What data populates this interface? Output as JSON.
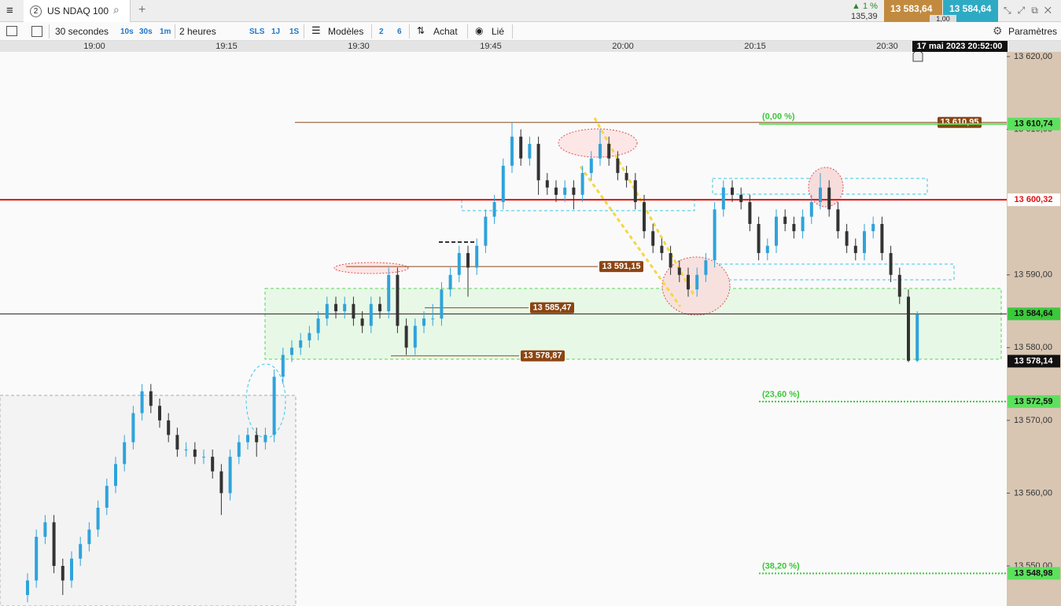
{
  "header": {
    "tab_number": "2",
    "tab_title": "US NDAQ 100",
    "change": "▲ 1 %",
    "change_points": "135,39",
    "bid": "13 583,64",
    "spread": "1,00",
    "ask": "13 584,64"
  },
  "toolbar": {
    "period": "30 secondes",
    "periods": [
      "10s",
      "30s",
      "1m"
    ],
    "range": "2 heures",
    "ranges": [
      "SLS",
      "1J",
      "1S"
    ],
    "templates": "Modèles",
    "counts": [
      "2",
      "6"
    ],
    "order": "Achat",
    "link": "Lié",
    "settings": "Paramètres"
  },
  "time_axis": {
    "labels": [
      "19:00",
      "19:15",
      "19:30",
      "19:45",
      "20:00",
      "20:15",
      "20:30"
    ],
    "cursor": "17 mai 2023 20:52:00"
  },
  "price_axis": {
    "ticks": [
      {
        "value": 13620,
        "label": "13 620,00"
      },
      {
        "value": 13610,
        "label": "13 610,00"
      },
      {
        "value": 13590,
        "label": "13 590,00"
      },
      {
        "value": 13580,
        "label": "13 580,00"
      },
      {
        "value": 13570,
        "label": "13 570,00"
      },
      {
        "value": 13560,
        "label": "13 560,00"
      },
      {
        "value": 13550,
        "label": "13 550,00"
      }
    ]
  },
  "axis_tags": [
    {
      "value": 13610.74,
      "label": "13 610,74"
    },
    {
      "value": 13600.32,
      "label": "13 600,32"
    },
    {
      "value": 13584.64,
      "label": "13 584,64"
    },
    {
      "value": 13578.14,
      "label": "13 578,14"
    },
    {
      "value": 13572.59,
      "label": "13 572,59"
    },
    {
      "value": 13548.98,
      "label": "13 548,98"
    }
  ],
  "drawn_levels": [
    {
      "value": 13610.95,
      "label": "13 610,95"
    },
    {
      "value": 13591.15,
      "label": "13 591,15"
    },
    {
      "value": 13585.47,
      "label": "13 585,47"
    },
    {
      "value": 13578.87,
      "label": "13 578,87"
    }
  ],
  "fibonacci": [
    {
      "label": "(0,00 %)",
      "value": 13610.74
    },
    {
      "label": "(23,60 %)",
      "value": 13572.59
    },
    {
      "label": "(38,20 %)",
      "value": 13548.98
    }
  ],
  "candles": [
    [
      13546,
      13549,
      13545,
      13548
    ],
    [
      13548,
      13555,
      13547,
      13554
    ],
    [
      13554,
      13557,
      13553,
      13556
    ],
    [
      13556,
      13557,
      13549,
      13550
    ],
    [
      13550,
      13551,
      13546,
      13548
    ],
    [
      13548,
      13552,
      13547,
      13551
    ],
    [
      13551,
      13554,
      13550,
      13553
    ],
    [
      13553,
      13556,
      13552,
      13555
    ],
    [
      13555,
      13559,
      13554,
      13558
    ],
    [
      13558,
      13562,
      13557,
      13561
    ],
    [
      13561,
      13565,
      13560,
      13564
    ],
    [
      13564,
      13568,
      13563,
      13567
    ],
    [
      13567,
      13572,
      13566,
      13571
    ],
    [
      13571,
      13575,
      13570,
      13574
    ],
    [
      13574,
      13575,
      13571,
      13572
    ],
    [
      13572,
      13573,
      13569,
      13570
    ],
    [
      13570,
      13571,
      13567,
      13568
    ],
    [
      13568,
      13569,
      13565,
      13566
    ],
    [
      13566,
      13567,
      13565,
      13566
    ],
    [
      13566,
      13567,
      13564,
      13565
    ],
    [
      13565,
      13566,
      13564,
      13565
    ],
    [
      13565,
      13566,
      13562,
      13563
    ],
    [
      13563,
      13564,
      13557,
      13560
    ],
    [
      13560,
      13566,
      13559,
      13565
    ],
    [
      13565,
      13568,
      13564,
      13567
    ],
    [
      13567,
      13569,
      13566,
      13568
    ],
    [
      13568,
      13569,
      13565,
      13567
    ],
    [
      13567,
      13569,
      13566,
      13568
    ],
    [
      13568,
      13577,
      13567,
      13576
    ],
    [
      13576,
      13580,
      13575,
      13579
    ],
    [
      13579,
      13581,
      13578,
      13580
    ],
    [
      13580,
      13582,
      13579,
      13581
    ],
    [
      13581,
      13583,
      13580,
      13582
    ],
    [
      13582,
      13585,
      13581,
      13584
    ],
    [
      13584,
      13587,
      13583,
      13586
    ],
    [
      13586,
      13587,
      13584,
      13585
    ],
    [
      13585,
      13587,
      13584,
      13586
    ],
    [
      13586,
      13587,
      13583,
      13584
    ],
    [
      13584,
      13585,
      13582,
      13583
    ],
    [
      13583,
      13587,
      13582,
      13586
    ],
    [
      13586,
      13587,
      13584,
      13585
    ],
    [
      13585,
      13591,
      13584,
      13590
    ],
    [
      13590,
      13591,
      13582,
      13583
    ],
    [
      13583,
      13584,
      13579,
      13580
    ],
    [
      13580,
      13584,
      13579,
      13583
    ],
    [
      13583,
      13585,
      13582,
      13584
    ],
    [
      13584,
      13586,
      13583,
      13584
    ],
    [
      13584,
      13589,
      13583,
      13588
    ],
    [
      13588,
      13591,
      13587,
      13590
    ],
    [
      13590,
      13594,
      13589,
      13593
    ],
    [
      13593,
      13594,
      13587,
      13591
    ],
    [
      13591,
      13595,
      13590,
      13594
    ],
    [
      13594,
      13599,
      13593,
      13598
    ],
    [
      13598,
      13601,
      13597,
      13600
    ],
    [
      13600,
      13606,
      13599,
      13605
    ],
    [
      13605,
      13611,
      13604,
      13609
    ],
    [
      13609,
      13610,
      13605,
      13606
    ],
    [
      13606,
      13609,
      13605,
      13608
    ],
    [
      13608,
      13609,
      13601,
      13603
    ],
    [
      13603,
      13604,
      13601,
      13602
    ],
    [
      13602,
      13603,
      13600,
      13601
    ],
    [
      13601,
      13603,
      13600,
      13602
    ],
    [
      13602,
      13603,
      13599,
      13601
    ],
    [
      13601,
      13605,
      13600,
      13604
    ],
    [
      13604,
      13607,
      13603,
      13606
    ],
    [
      13606,
      13610,
      13605,
      13608
    ],
    [
      13608,
      13609,
      13605,
      13606
    ],
    [
      13606,
      13607,
      13603,
      13604
    ],
    [
      13604,
      13605,
      13602,
      13603
    ],
    [
      13603,
      13604,
      13599,
      13600
    ],
    [
      13600,
      13601,
      13595,
      13596
    ],
    [
      13596,
      13597,
      13593,
      13594
    ],
    [
      13594,
      13595,
      13592,
      13593
    ],
    [
      13593,
      13594,
      13590,
      13591
    ],
    [
      13591,
      13592,
      13589,
      13590
    ],
    [
      13590,
      13591,
      13587,
      13588
    ],
    [
      13588,
      13591,
      13587,
      13590
    ],
    [
      13590,
      13593,
      13589,
      13592
    ],
    [
      13592,
      13600,
      13591,
      13599
    ],
    [
      13599,
      13603,
      13598,
      13602
    ],
    [
      13602,
      13603,
      13600,
      13601
    ],
    [
      13601,
      13602,
      13599,
      13600
    ],
    [
      13600,
      13601,
      13596,
      13597
    ],
    [
      13597,
      13598,
      13592,
      13593
    ],
    [
      13593,
      13595,
      13592,
      13594
    ],
    [
      13594,
      13599,
      13593,
      13598
    ],
    [
      13598,
      13599,
      13596,
      13597
    ],
    [
      13597,
      13598,
      13595,
      13596
    ],
    [
      13596,
      13599,
      13595,
      13598
    ],
    [
      13598,
      13601,
      13597,
      13600
    ],
    [
      13600,
      13604,
      13599,
      13602
    ],
    [
      13602,
      13603,
      13598,
      13599
    ],
    [
      13599,
      13600,
      13595,
      13596
    ],
    [
      13596,
      13597,
      13593,
      13594
    ],
    [
      13594,
      13595,
      13592,
      13593
    ],
    [
      13593,
      13597,
      13592,
      13596
    ],
    [
      13596,
      13598,
      13595,
      13597
    ],
    [
      13597,
      13598,
      13592,
      13593
    ],
    [
      13593,
      13594,
      13589,
      13590
    ],
    [
      13590,
      13591,
      13586,
      13587
    ],
    [
      13587,
      13588,
      13578,
      13578.2
    ],
    [
      13578.2,
      13585,
      13578,
      13584.6
    ]
  ]
}
